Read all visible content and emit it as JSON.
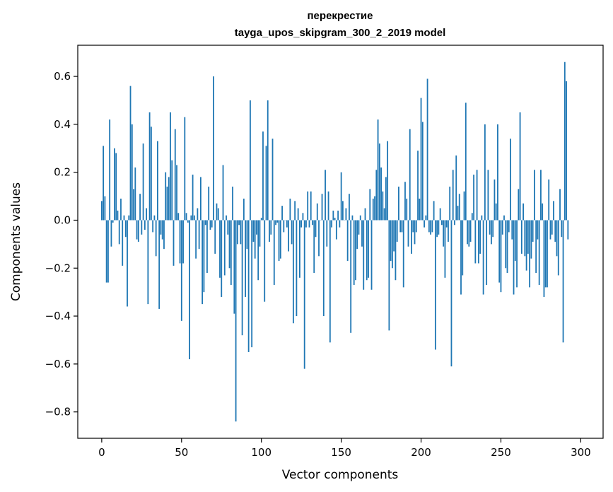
{
  "chart_data": {
    "type": "bar",
    "title": "перекрестие",
    "subtitle": "tayga_upos_skipgram_300_2_2019 model",
    "xlabel": "Vector components",
    "ylabel": "Components values",
    "xlim": [
      -15,
      314
    ],
    "ylim": [
      -0.91,
      0.73
    ],
    "xticks": [
      0,
      50,
      100,
      150,
      200,
      250,
      300
    ],
    "xtick_labels": [
      "0",
      "50",
      "100",
      "150",
      "200",
      "250",
      "300"
    ],
    "yticks": [
      -0.8,
      -0.6,
      -0.4,
      -0.2,
      0.0,
      0.2,
      0.4,
      0.6
    ],
    "ytick_labels": [
      "−0.8",
      "−0.6",
      "−0.4",
      "−0.2",
      "0.0",
      "0.2",
      "0.4",
      "0.6"
    ],
    "grid": false,
    "bar_color": "#1f77b4",
    "values": [
      0.08,
      0.31,
      0.1,
      -0.26,
      -0.26,
      0.42,
      -0.11,
      -0.01,
      0.3,
      0.28,
      0.04,
      -0.1,
      0.09,
      -0.19,
      0.02,
      -0.07,
      -0.36,
      0.02,
      0.56,
      0.4,
      0.13,
      0.22,
      -0.08,
      -0.09,
      0.11,
      -0.06,
      0.32,
      -0.04,
      0.05,
      -0.35,
      0.45,
      0.39,
      -0.05,
      0.02,
      -0.15,
      0.33,
      -0.37,
      -0.06,
      -0.08,
      -0.12,
      0.2,
      0.14,
      0.18,
      0.45,
      0.25,
      -0.19,
      0.38,
      0.23,
      0.03,
      -0.18,
      -0.42,
      -0.18,
      0.43,
      0.03,
      -0.01,
      -0.58,
      0.02,
      0.19,
      0.02,
      -0.16,
      0.05,
      -0.12,
      0.18,
      -0.35,
      -0.3,
      -0.02,
      -0.22,
      0.14,
      -0.04,
      -0.03,
      0.6,
      -0.14,
      0.07,
      0.05,
      -0.24,
      -0.32,
      0.23,
      -0.23,
      0.02,
      -0.06,
      -0.2,
      -0.27,
      0.14,
      -0.39,
      -0.84,
      -0.1,
      -0.02,
      -0.1,
      -0.48,
      0.09,
      -0.32,
      -0.12,
      -0.55,
      0.5,
      -0.53,
      -0.09,
      -0.16,
      -0.06,
      -0.25,
      -0.11,
      0.01,
      0.37,
      -0.34,
      0.31,
      0.5,
      -0.09,
      -0.06,
      0.34,
      -0.27,
      -0.02,
      -0.01,
      -0.17,
      -0.16,
      0.06,
      -0.05,
      0.0,
      -0.03,
      -0.13,
      0.09,
      -0.1,
      -0.43,
      0.08,
      -0.4,
      0.05,
      -0.24,
      -0.03,
      0.03,
      -0.62,
      -0.03,
      0.12,
      -0.03,
      0.12,
      -0.02,
      -0.22,
      -0.07,
      0.07,
      -0.15,
      0.0,
      0.11,
      -0.4,
      0.21,
      -0.11,
      0.12,
      -0.51,
      -0.03,
      0.04,
      0.01,
      -0.08,
      0.04,
      -0.03,
      0.2,
      0.08,
      0.0,
      0.05,
      -0.17,
      0.11,
      -0.47,
      0.02,
      -0.27,
      -0.25,
      -0.12,
      -0.06,
      0.02,
      -0.11,
      -0.29,
      0.05,
      -0.25,
      -0.24,
      0.13,
      -0.29,
      0.09,
      0.1,
      0.21,
      0.42,
      0.32,
      0.22,
      0.12,
      0.05,
      0.18,
      0.33,
      -0.46,
      -0.17,
      -0.2,
      -0.13,
      -0.25,
      -0.09,
      0.14,
      -0.05,
      -0.05,
      -0.28,
      0.16,
      0.09,
      -0.11,
      0.38,
      -0.14,
      -0.05,
      -0.1,
      -0.05,
      0.29,
      0.09,
      0.51,
      0.41,
      -0.03,
      0.02,
      0.59,
      -0.05,
      -0.06,
      -0.05,
      0.08,
      -0.54,
      -0.07,
      -0.06,
      0.05,
      -0.02,
      -0.11,
      -0.24,
      -0.03,
      -0.09,
      0.14,
      -0.61,
      0.21,
      -0.02,
      0.27,
      0.06,
      0.11,
      -0.31,
      -0.23,
      0.12,
      0.49,
      -0.1,
      -0.11,
      -0.09,
      0.03,
      0.19,
      -0.18,
      0.21,
      -0.18,
      -0.14,
      0.02,
      -0.31,
      0.4,
      -0.27,
      0.21,
      -0.06,
      -0.1,
      -0.07,
      0.17,
      0.07,
      0.4,
      -0.26,
      -0.3,
      -0.06,
      0.02,
      -0.2,
      -0.22,
      -0.05,
      0.34,
      -0.08,
      -0.31,
      -0.17,
      -0.28,
      0.13,
      0.45,
      -0.14,
      0.07,
      -0.15,
      -0.21,
      -0.14,
      -0.28,
      -0.16,
      -0.09,
      0.21,
      -0.22,
      -0.08,
      -0.27,
      0.21,
      0.07,
      -0.32,
      -0.28,
      -0.28,
      0.17,
      -0.08,
      -0.06,
      0.08,
      -0.09,
      -0.15,
      -0.23,
      0.13,
      -0.07,
      -0.51,
      0.66,
      0.58,
      -0.08
    ]
  }
}
